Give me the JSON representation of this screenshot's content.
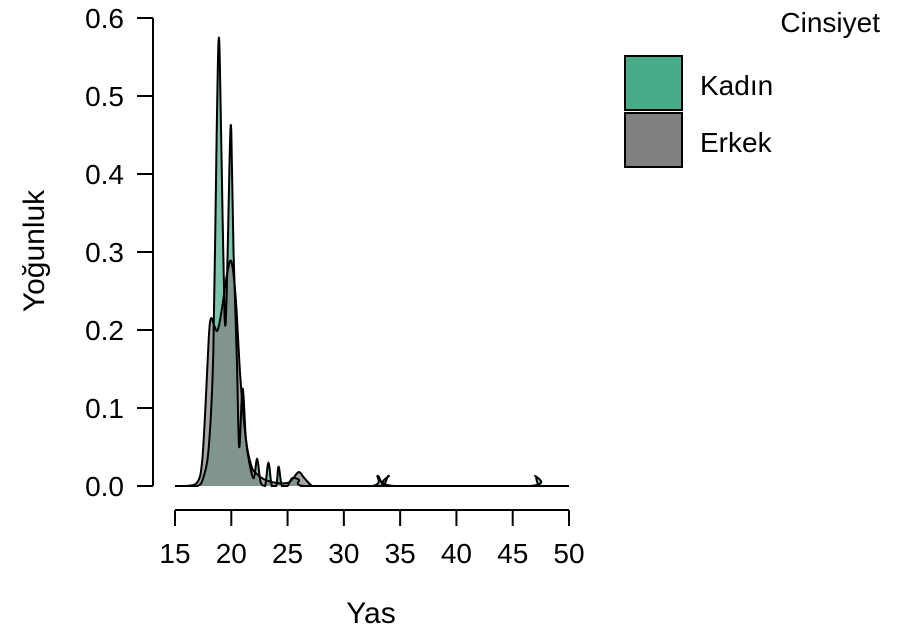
{
  "chart_data": {
    "type": "area",
    "xlabel": "Yas",
    "ylabel": "Yoğunluk",
    "xlim": [
      15,
      50
    ],
    "ylim": [
      0,
      0.6
    ],
    "x_ticks": [
      15,
      20,
      25,
      30,
      35,
      40,
      45,
      50
    ],
    "y_ticks": [
      0.0,
      0.1,
      0.2,
      0.3,
      0.4,
      0.5,
      0.6
    ],
    "y_tick_labels": [
      "0.0",
      "0.1",
      "0.2",
      "0.3",
      "0.4",
      "0.5",
      "0.6"
    ],
    "grid": false,
    "legend": {
      "title": "Cinsiyet",
      "placement": "top-right",
      "entries": [
        "Kadın",
        "Erkek"
      ]
    },
    "series": [
      {
        "name": "Kadın",
        "color": "#46AC8C",
        "points": [
          [
            15,
            0
          ],
          [
            16,
            0
          ],
          [
            17,
            0
          ],
          [
            17.5,
            0.01
          ],
          [
            18.0,
            0.05
          ],
          [
            18.4,
            0.17
          ],
          [
            18.7,
            0.45
          ],
          [
            18.9,
            0.575
          ],
          [
            19.1,
            0.45
          ],
          [
            19.4,
            0.22
          ],
          [
            19.6,
            0.25
          ],
          [
            19.85,
            0.42
          ],
          [
            20.0,
            0.455
          ],
          [
            20.2,
            0.3
          ],
          [
            20.5,
            0.16
          ],
          [
            20.7,
            0.05
          ],
          [
            21.0,
            0.125
          ],
          [
            21.3,
            0.06
          ],
          [
            21.6,
            0.03
          ],
          [
            22.0,
            0.01
          ],
          [
            22.3,
            0.035
          ],
          [
            22.6,
            0.005
          ],
          [
            23.0,
            0.0
          ],
          [
            23.3,
            0.03
          ],
          [
            23.6,
            0.0
          ],
          [
            24.0,
            0.0
          ],
          [
            24.2,
            0.025
          ],
          [
            24.5,
            0.0
          ],
          [
            25.0,
            0.0
          ],
          [
            25.4,
            0.01
          ],
          [
            26.0,
            0.008
          ],
          [
            26.5,
            0.0
          ],
          [
            32.5,
            0
          ],
          [
            33.0,
            0.013
          ],
          [
            33.5,
            0
          ],
          [
            33.7,
            0.005
          ],
          [
            34.0,
            0.013
          ],
          [
            34.5,
            0
          ],
          [
            46.5,
            0
          ],
          [
            47.0,
            0.013
          ],
          [
            47.5,
            0
          ],
          [
            50,
            0
          ]
        ]
      },
      {
        "name": "Erkek",
        "color": "#808080",
        "points": [
          [
            15,
            0
          ],
          [
            16,
            0
          ],
          [
            17.0,
            0.005
          ],
          [
            17.4,
            0.03
          ],
          [
            17.7,
            0.1
          ],
          [
            18.0,
            0.19
          ],
          [
            18.2,
            0.215
          ],
          [
            18.5,
            0.205
          ],
          [
            18.8,
            0.2
          ],
          [
            19.2,
            0.23
          ],
          [
            19.6,
            0.27
          ],
          [
            20.0,
            0.288
          ],
          [
            20.4,
            0.24
          ],
          [
            20.8,
            0.14
          ],
          [
            21.3,
            0.06
          ],
          [
            21.8,
            0.025
          ],
          [
            22.3,
            0.015
          ],
          [
            23.0,
            0.008
          ],
          [
            24.0,
            0.004
          ],
          [
            25.0,
            0.004
          ],
          [
            25.5,
            0.01
          ],
          [
            26.0,
            0.018
          ],
          [
            26.5,
            0.01
          ],
          [
            27.2,
            0.0
          ],
          [
            28,
            0
          ],
          [
            50,
            0
          ]
        ]
      }
    ]
  }
}
